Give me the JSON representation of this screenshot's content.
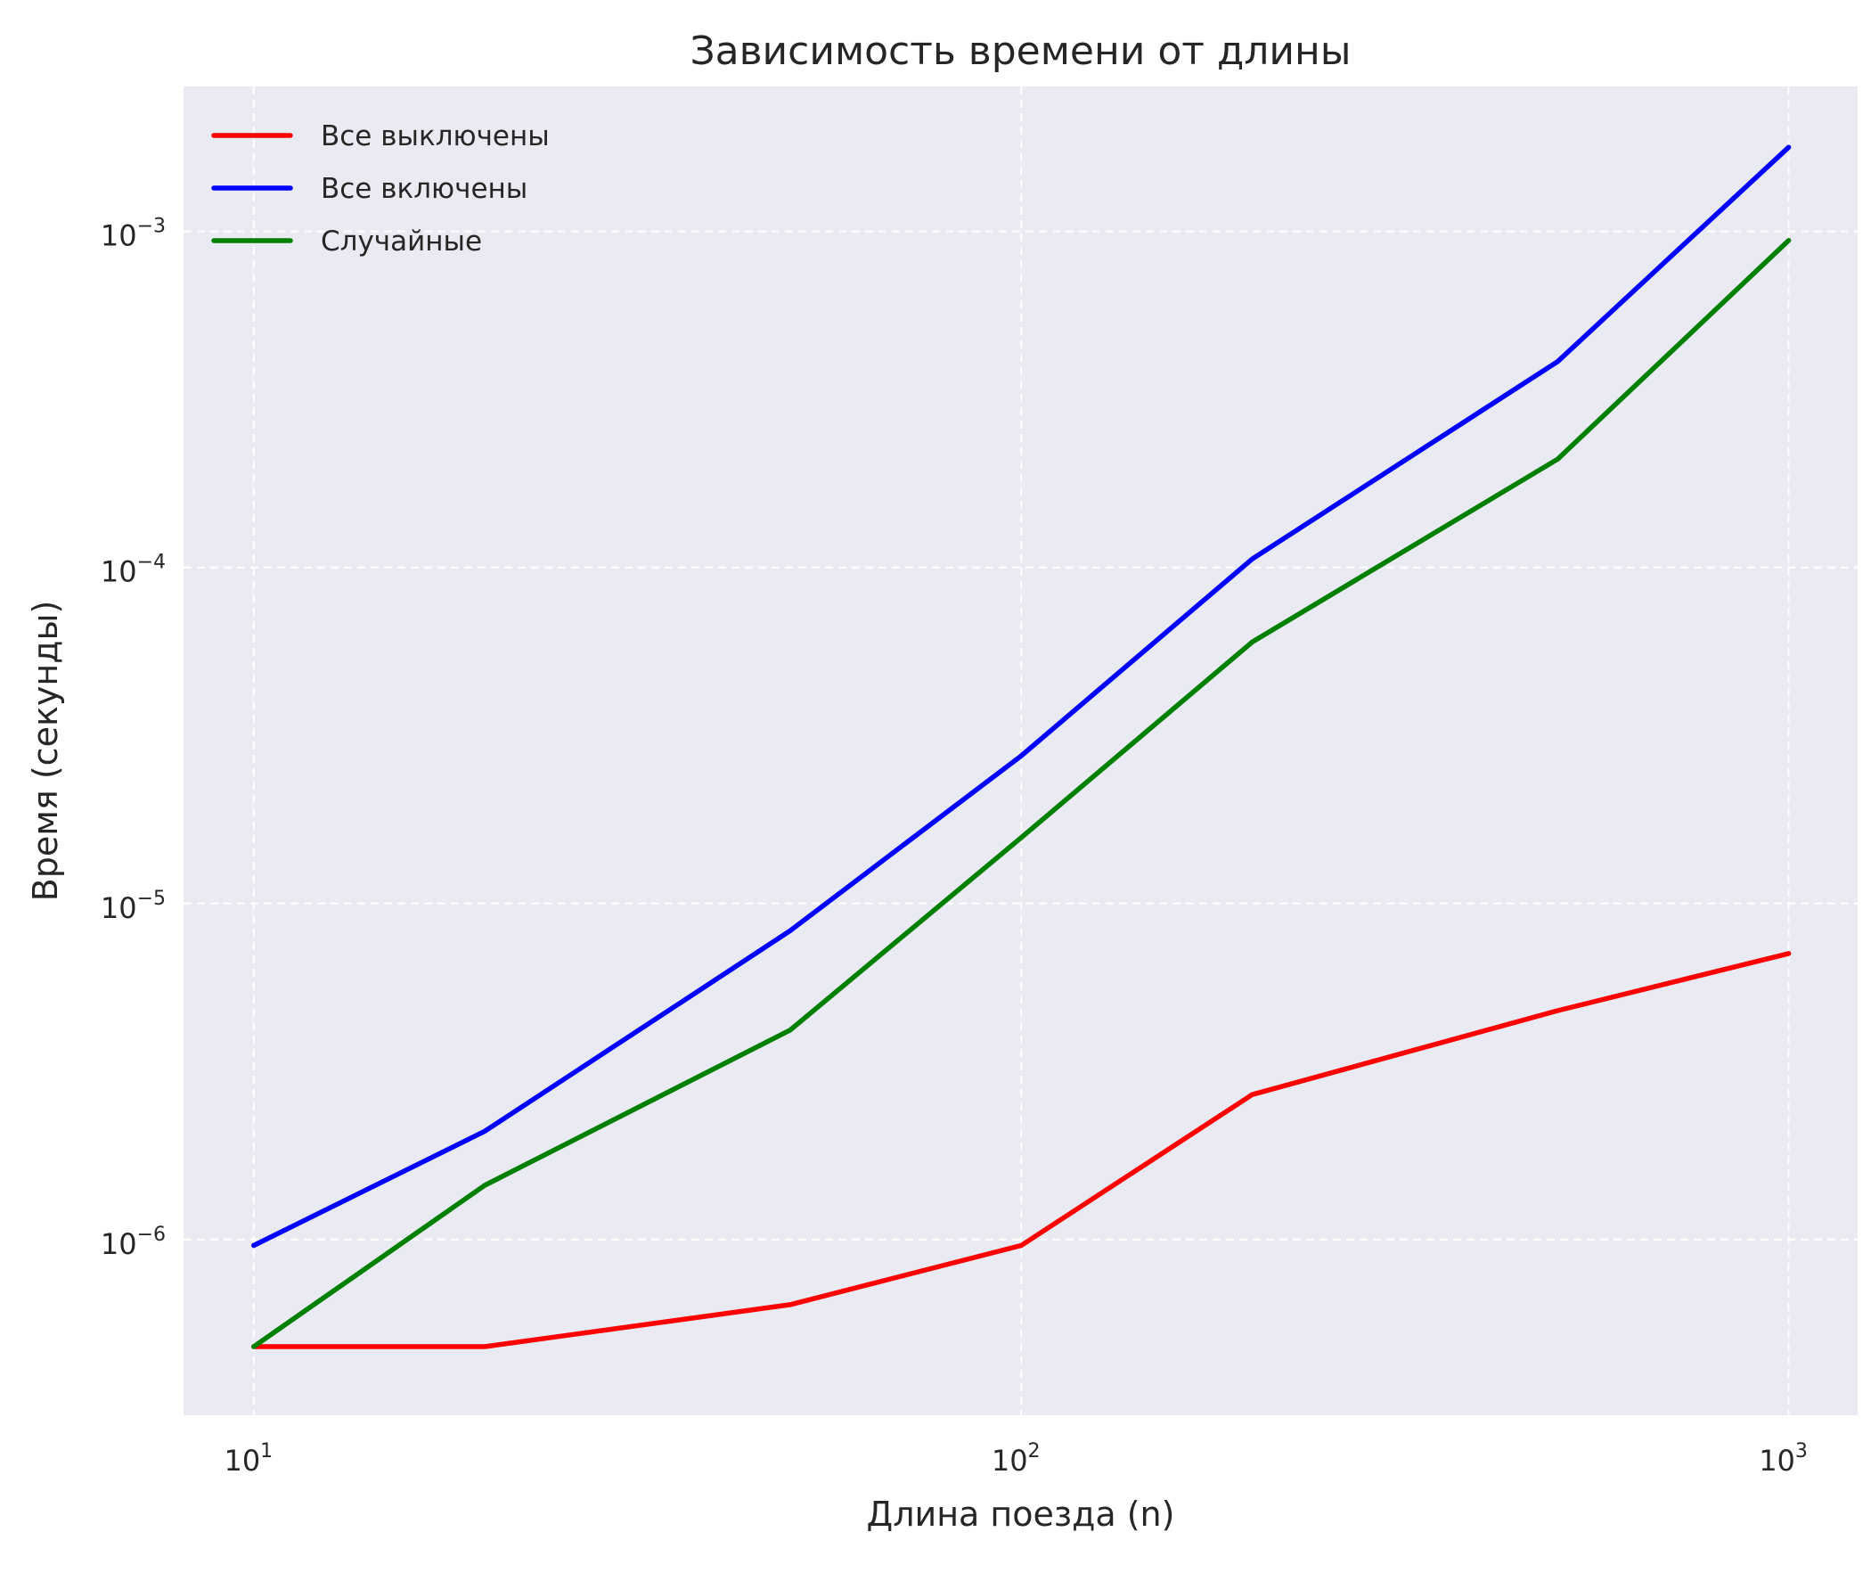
{
  "chart_data": {
    "type": "line",
    "title": "Зависимость времени от длины",
    "xlabel": "Длина поезда (n)",
    "ylabel": "Время (секунды)",
    "xscale": "log",
    "yscale": "log",
    "xlim": [
      8.1,
      1230
    ],
    "ylim": [
      3e-07,
      0.0027
    ],
    "x_ticks": [
      {
        "value": 10,
        "base": "10",
        "exp": "1"
      },
      {
        "value": 100,
        "base": "10",
        "exp": "2"
      },
      {
        "value": 1000,
        "base": "10",
        "exp": "3"
      }
    ],
    "y_ticks": [
      {
        "value": 1e-06,
        "base": "10",
        "exp": "−6"
      },
      {
        "value": 1e-05,
        "base": "10",
        "exp": "−5"
      },
      {
        "value": 0.0001,
        "base": "10",
        "exp": "−4"
      },
      {
        "value": 0.001,
        "base": "10",
        "exp": "−3"
      }
    ],
    "grid": true,
    "legend_position": "top-left",
    "background_color": "#EAEAF2",
    "x": [
      10,
      20,
      50,
      100,
      200,
      500,
      1000
    ],
    "series": [
      {
        "name": "Все выключены",
        "color": "#FF0000",
        "values": [
          4.8e-07,
          4.8e-07,
          6.4e-07,
          9.6e-07,
          2.7e-06,
          4.8e-06,
          7.1e-06
        ]
      },
      {
        "name": "Все включены",
        "color": "#0000FF",
        "values": [
          9.6e-07,
          2.1e-06,
          8.3e-06,
          2.75e-05,
          0.000106,
          0.00041,
          0.00178
        ]
      },
      {
        "name": "Случайные",
        "color": "#008000",
        "values": [
          4.8e-07,
          1.45e-06,
          4.2e-06,
          1.57e-05,
          6e-05,
          0.00021,
          0.00094
        ]
      }
    ]
  }
}
